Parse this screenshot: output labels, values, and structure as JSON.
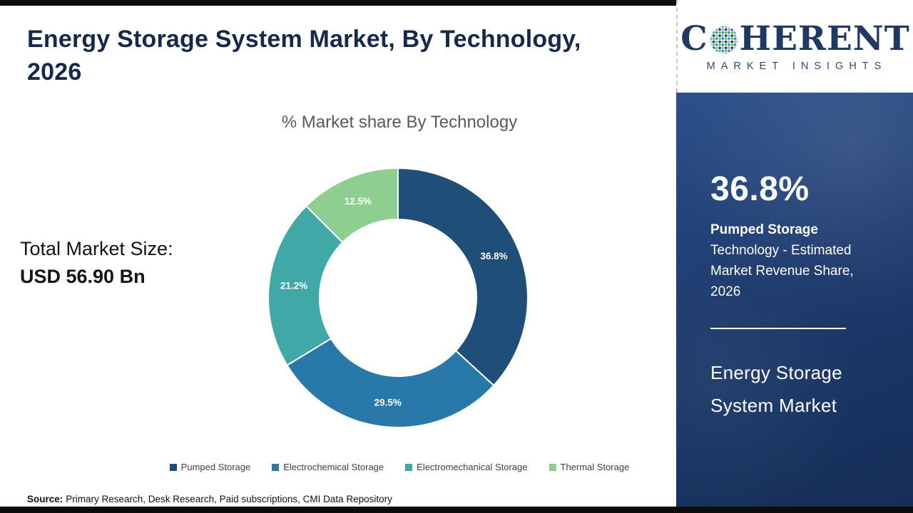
{
  "header": {
    "title": "Energy Storage System Market, By Technology, 2026"
  },
  "chart_data": {
    "type": "pie",
    "subtype": "donut",
    "title": "% Market share By Technology",
    "unit": "%",
    "direction": "clockwise",
    "start_angle_deg": 0,
    "legend_position": "bottom",
    "segments": [
      {
        "name": "Pumped Storage",
        "value": 36.8,
        "label": "36.8%",
        "color": "#1F4E79"
      },
      {
        "name": "Electrochemical Storage",
        "value": 29.5,
        "label": "29.5%",
        "color": "#2878A9"
      },
      {
        "name": "Electromechanical Storage",
        "value": 21.2,
        "label": "21.2%",
        "color": "#41A8A8"
      },
      {
        "name": "Thermal Storage",
        "value": 12.5,
        "label": "12.5%",
        "color": "#8FCE91"
      }
    ]
  },
  "summary": {
    "total_label": "Total Market Size:",
    "total_value": "USD 56.90 Bn"
  },
  "source": {
    "label": "Source:",
    "text": "Primary Research, Desk Research, Paid subscriptions, CMI Data Repository"
  },
  "logo": {
    "text_before_globe": "C",
    "text_after_globe": "HERENT",
    "subtitle": "MARKET INSIGHTS"
  },
  "right_panel": {
    "stat_value": "36.8%",
    "stat_highlight": "Pumped Storage",
    "stat_description": "Technology - Estimated Market Revenue Share, 2026",
    "market_name_line1": "Energy Storage",
    "market_name_line2": "System Market"
  },
  "colors": {
    "panel_navy": "#1C3A6B",
    "accent_navy": "#1F3864"
  }
}
